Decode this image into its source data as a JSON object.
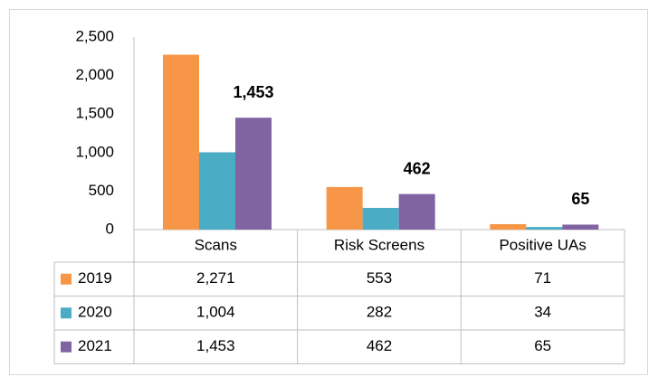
{
  "chart_data": {
    "type": "bar",
    "categories": [
      "Scans",
      "Risk Screens",
      "Positive UAs"
    ],
    "series": [
      {
        "name": "2019",
        "color": "#f79646",
        "values": [
          2271,
          553,
          71
        ],
        "value_labels": [
          "2,271",
          "553",
          "71"
        ]
      },
      {
        "name": "2020",
        "color": "#4bacc6",
        "values": [
          1004,
          282,
          34
        ],
        "value_labels": [
          "1,004",
          "282",
          "34"
        ]
      },
      {
        "name": "2021",
        "color": "#8064a2",
        "values": [
          1453,
          462,
          65
        ],
        "value_labels": [
          "1,453",
          "462",
          "65"
        ]
      }
    ],
    "data_labels_series": 2,
    "ylim": [
      0,
      2500
    ],
    "yticks": [
      0,
      500,
      {
        "value": 1000,
        "label": "1,000"
      },
      {
        "value": 1500,
        "label": "1,500"
      },
      {
        "value": 2000,
        "label": "2,000"
      },
      {
        "value": 2500,
        "label": "2,500"
      }
    ],
    "grid": false
  }
}
